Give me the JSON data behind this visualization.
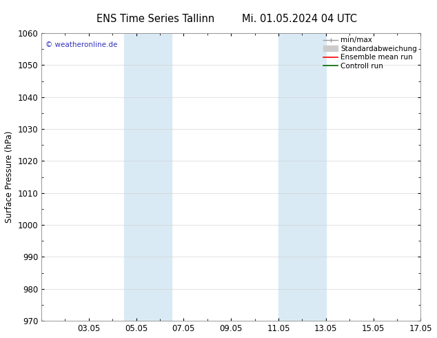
{
  "title_left": "ENS Time Series Tallinn",
  "title_right": "Mi. 01.05.2024 04 UTC",
  "ylabel": "Surface Pressure (hPa)",
  "ylim": [
    970,
    1060
  ],
  "yticks": [
    970,
    980,
    990,
    1000,
    1010,
    1020,
    1030,
    1040,
    1050,
    1060
  ],
  "xlim": [
    0,
    16
  ],
  "xtick_labels": [
    "03.05",
    "05.05",
    "07.05",
    "09.05",
    "11.05",
    "13.05",
    "15.05",
    "17.05"
  ],
  "xtick_positions": [
    2,
    4,
    6,
    8,
    10,
    12,
    14,
    16
  ],
  "shaded_regions": [
    {
      "xstart": 3.5,
      "xend": 5.5
    },
    {
      "xstart": 10.0,
      "xend": 12.0
    }
  ],
  "shaded_color": "#daeaf5",
  "watermark_text": "© weatheronline.de",
  "watermark_color": "#3333bb",
  "legend_items": [
    {
      "label": "min/max",
      "color": "#999999",
      "lw": 1
    },
    {
      "label": "Standardabweichung",
      "color": "#cccccc",
      "lw": 6
    },
    {
      "label": "Ensemble mean run",
      "color": "#ff0000",
      "lw": 1.2
    },
    {
      "label": "Controll run",
      "color": "#006600",
      "lw": 1.2
    }
  ],
  "bg_color": "#ffffff",
  "spine_color": "#888888",
  "tick_label_fontsize": 8.5,
  "axis_label_fontsize": 8.5,
  "title_fontsize": 10.5,
  "legend_fontsize": 7.5
}
